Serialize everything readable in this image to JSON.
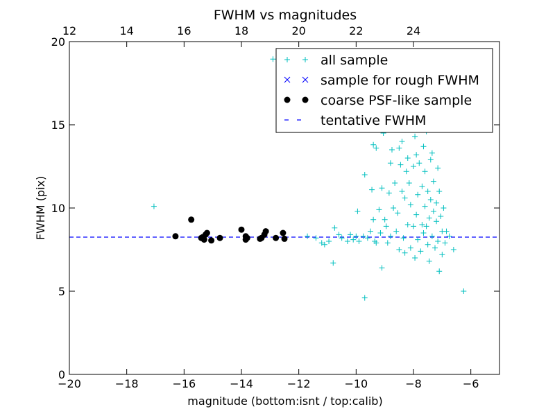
{
  "chart_data": {
    "type": "scatter",
    "title": "FWHM vs magnitudes",
    "xlabel": "magnitude (bottom:isnt / top:calib)",
    "ylabel": "FWHM (pix)",
    "xlim": [
      -20,
      -5
    ],
    "ylim": [
      0,
      20
    ],
    "x_ticks": [
      -20,
      -18,
      -16,
      -14,
      -12,
      -10,
      -8,
      -6
    ],
    "y_ticks": [
      0,
      5,
      10,
      15,
      20
    ],
    "top_axis": {
      "label": "calib",
      "offset_from_bottom": 32,
      "ticks": [
        12,
        14,
        16,
        18,
        20,
        22,
        24
      ]
    },
    "grid": false,
    "legend_position": "top-right",
    "series": [
      {
        "name": "all sample",
        "marker": "+",
        "color": "#00bfbf",
        "points": [
          [
            -17.05,
            10.1
          ],
          [
            -12.9,
            18.95
          ],
          [
            -11.7,
            8.3
          ],
          [
            -11.4,
            8.2
          ],
          [
            -11.2,
            7.9
          ],
          [
            -11.1,
            7.8
          ],
          [
            -10.95,
            8.0
          ],
          [
            -10.8,
            6.7
          ],
          [
            -10.75,
            8.8
          ],
          [
            -10.6,
            8.4
          ],
          [
            -10.5,
            8.2
          ],
          [
            -10.3,
            8.0
          ],
          [
            -10.2,
            8.4
          ],
          [
            -10.1,
            8.1
          ],
          [
            -10.0,
            8.3
          ],
          [
            -9.95,
            9.8
          ],
          [
            -9.9,
            8.0
          ],
          [
            -9.75,
            8.3
          ],
          [
            -9.7,
            12.0
          ],
          [
            -9.7,
            4.6
          ],
          [
            -9.6,
            8.2
          ],
          [
            -9.5,
            8.6
          ],
          [
            -9.45,
            11.1
          ],
          [
            -9.4,
            13.8
          ],
          [
            -9.4,
            9.3
          ],
          [
            -9.35,
            8.0
          ],
          [
            -9.3,
            7.9
          ],
          [
            -9.3,
            13.6
          ],
          [
            -9.2,
            9.9
          ],
          [
            -9.15,
            8.5
          ],
          [
            -9.1,
            11.2
          ],
          [
            -9.1,
            6.4
          ],
          [
            -9.05,
            14.5
          ],
          [
            -9.0,
            9.3
          ],
          [
            -8.95,
            8.9
          ],
          [
            -8.9,
            7.9
          ],
          [
            -8.85,
            10.9
          ],
          [
            -8.8,
            12.7
          ],
          [
            -8.8,
            8.3
          ],
          [
            -8.75,
            13.5
          ],
          [
            -8.7,
            10.0
          ],
          [
            -8.65,
            11.5
          ],
          [
            -8.6,
            8.6
          ],
          [
            -8.55,
            9.7
          ],
          [
            -8.5,
            7.5
          ],
          [
            -8.5,
            13.6
          ],
          [
            -8.45,
            12.6
          ],
          [
            -8.4,
            11.0
          ],
          [
            -8.4,
            14.0
          ],
          [
            -8.35,
            8.2
          ],
          [
            -8.3,
            10.6
          ],
          [
            -8.3,
            7.3
          ],
          [
            -8.25,
            12.2
          ],
          [
            -8.2,
            9.0
          ],
          [
            -8.2,
            13.0
          ],
          [
            -8.15,
            11.5
          ],
          [
            -8.1,
            7.6
          ],
          [
            -8.1,
            10.2
          ],
          [
            -8.05,
            14.9
          ],
          [
            -8.0,
            8.9
          ],
          [
            -8.0,
            12.5
          ],
          [
            -7.95,
            14.3
          ],
          [
            -7.95,
            7.0
          ],
          [
            -7.9,
            9.6
          ],
          [
            -7.9,
            13.2
          ],
          [
            -7.85,
            10.8
          ],
          [
            -7.85,
            8.1
          ],
          [
            -7.8,
            12.7
          ],
          [
            -7.8,
            15.5
          ],
          [
            -7.75,
            7.4
          ],
          [
            -7.7,
            9.0
          ],
          [
            -7.7,
            11.3
          ],
          [
            -7.65,
            13.7
          ],
          [
            -7.65,
            8.5
          ],
          [
            -7.6,
            10.1
          ],
          [
            -7.6,
            12.2
          ],
          [
            -7.55,
            8.9
          ],
          [
            -7.55,
            14.6
          ],
          [
            -7.5,
            7.8
          ],
          [
            -7.5,
            11.0
          ],
          [
            -7.45,
            9.4
          ],
          [
            -7.45,
            6.8
          ],
          [
            -7.4,
            12.9
          ],
          [
            -7.4,
            10.5
          ],
          [
            -7.35,
            8.3
          ],
          [
            -7.35,
            13.3
          ],
          [
            -7.3,
            9.8
          ],
          [
            -7.3,
            11.6
          ],
          [
            -7.25,
            7.6
          ],
          [
            -7.2,
            10.3
          ],
          [
            -7.2,
            9.2
          ],
          [
            -7.15,
            12.4
          ],
          [
            -7.15,
            8.0
          ],
          [
            -7.1,
            11.0
          ],
          [
            -7.1,
            6.2
          ],
          [
            -7.05,
            9.5
          ],
          [
            -7.0,
            8.6
          ],
          [
            -7.0,
            7.2
          ],
          [
            -6.95,
            10.0
          ],
          [
            -6.9,
            7.9
          ],
          [
            -6.85,
            8.6
          ],
          [
            -6.75,
            8.3
          ],
          [
            -6.6,
            7.5
          ],
          [
            -6.25,
            5.0
          ]
        ]
      },
      {
        "name": "sample for rough FWHM",
        "marker": "x",
        "color": "#0000ff",
        "points": []
      },
      {
        "name": "coarse PSF-like sample",
        "marker": "o",
        "color": "#000000",
        "points": [
          [
            -16.3,
            8.3
          ],
          [
            -15.75,
            9.3
          ],
          [
            -15.4,
            8.2
          ],
          [
            -15.35,
            8.25
          ],
          [
            -15.3,
            8.1
          ],
          [
            -15.25,
            8.4
          ],
          [
            -15.2,
            8.5
          ],
          [
            -15.05,
            8.05
          ],
          [
            -14.75,
            8.2
          ],
          [
            -14.0,
            8.7
          ],
          [
            -13.85,
            8.3
          ],
          [
            -13.85,
            8.1
          ],
          [
            -13.8,
            8.2
          ],
          [
            -13.35,
            8.15
          ],
          [
            -13.3,
            8.2
          ],
          [
            -13.2,
            8.4
          ],
          [
            -13.15,
            8.6
          ],
          [
            -12.8,
            8.2
          ],
          [
            -12.55,
            8.5
          ],
          [
            -12.5,
            8.15
          ]
        ]
      },
      {
        "name": "tentative FWHM",
        "marker": "dashed-line",
        "color": "#0000ff",
        "y": 8.25
      }
    ]
  }
}
